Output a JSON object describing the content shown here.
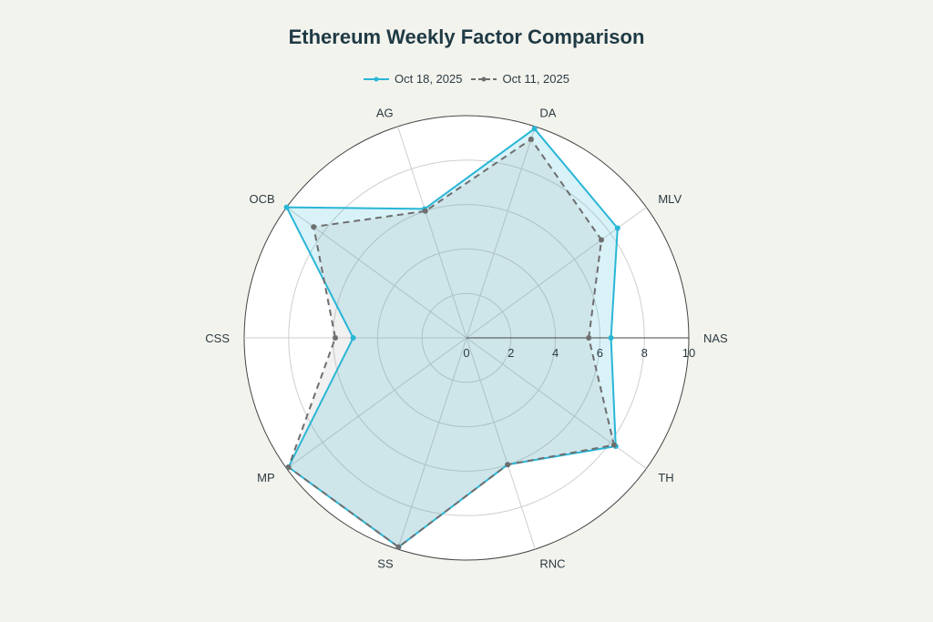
{
  "chart_data": {
    "type": "radar",
    "title": "Ethereum Weekly Factor Comparison",
    "categories": [
      "NAS",
      "MLV",
      "DA",
      "AG",
      "OCB",
      "CSS",
      "MP",
      "SS",
      "RNC",
      "TH"
    ],
    "radial_range": [
      0,
      10
    ],
    "radial_ticks": [
      "0",
      "2",
      "4",
      "6",
      "8",
      "10"
    ],
    "grid": true,
    "legend_position": "top-center",
    "series": [
      {
        "name": "Oct 18, 2025",
        "color": "#29b6d6",
        "fill": "rgba(41,182,214,0.18)",
        "dash": "solid",
        "values": {
          "NAS": 6.5,
          "TH": 8.3,
          "MLV": 8.4,
          "DA": 9.9,
          "AG": 6.1,
          "OCB": 10,
          "CSS": 5.1,
          "MP": 9.9,
          "SS": 9.9,
          "RNC": 6.0
        }
      },
      {
        "name": "Oct 11, 2025",
        "color": "#6e6e6e",
        "fill": "rgba(140,140,140,0.12)",
        "dash": "dashed",
        "values": {
          "NAS": 5.5,
          "TH": 8.2,
          "MLV": 7.5,
          "DA": 9.4,
          "AG": 6.0,
          "OCB": 8.5,
          "CSS": 5.9,
          "MP": 9.9,
          "SS": 9.9,
          "RNC": 6.0
        }
      }
    ]
  }
}
